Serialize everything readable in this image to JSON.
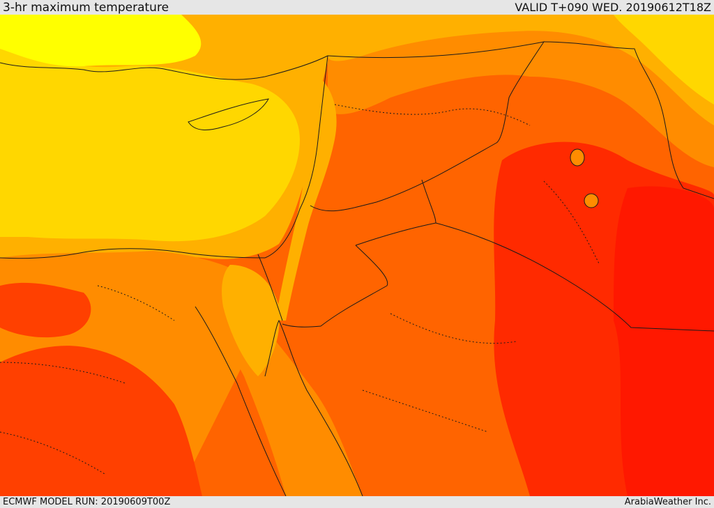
{
  "header": {
    "title": "3-hr maximum temperature",
    "valid_label": "VALID T+090 WED. 20190612T18Z"
  },
  "footer": {
    "model_run": "ECMWF MODEL RUN: 20190609T00Z",
    "credit": "ArabiaWeather Inc."
  },
  "colors": {
    "sea_light": "#ffff00",
    "sea_yellow": "#ffd700",
    "pale_orange": "#ffb000",
    "orange": "#ff8c00",
    "dark_orange": "#ff6400",
    "red_orange": "#ff4000",
    "red": "#ff1800",
    "border_line": "#1a1a1a"
  }
}
